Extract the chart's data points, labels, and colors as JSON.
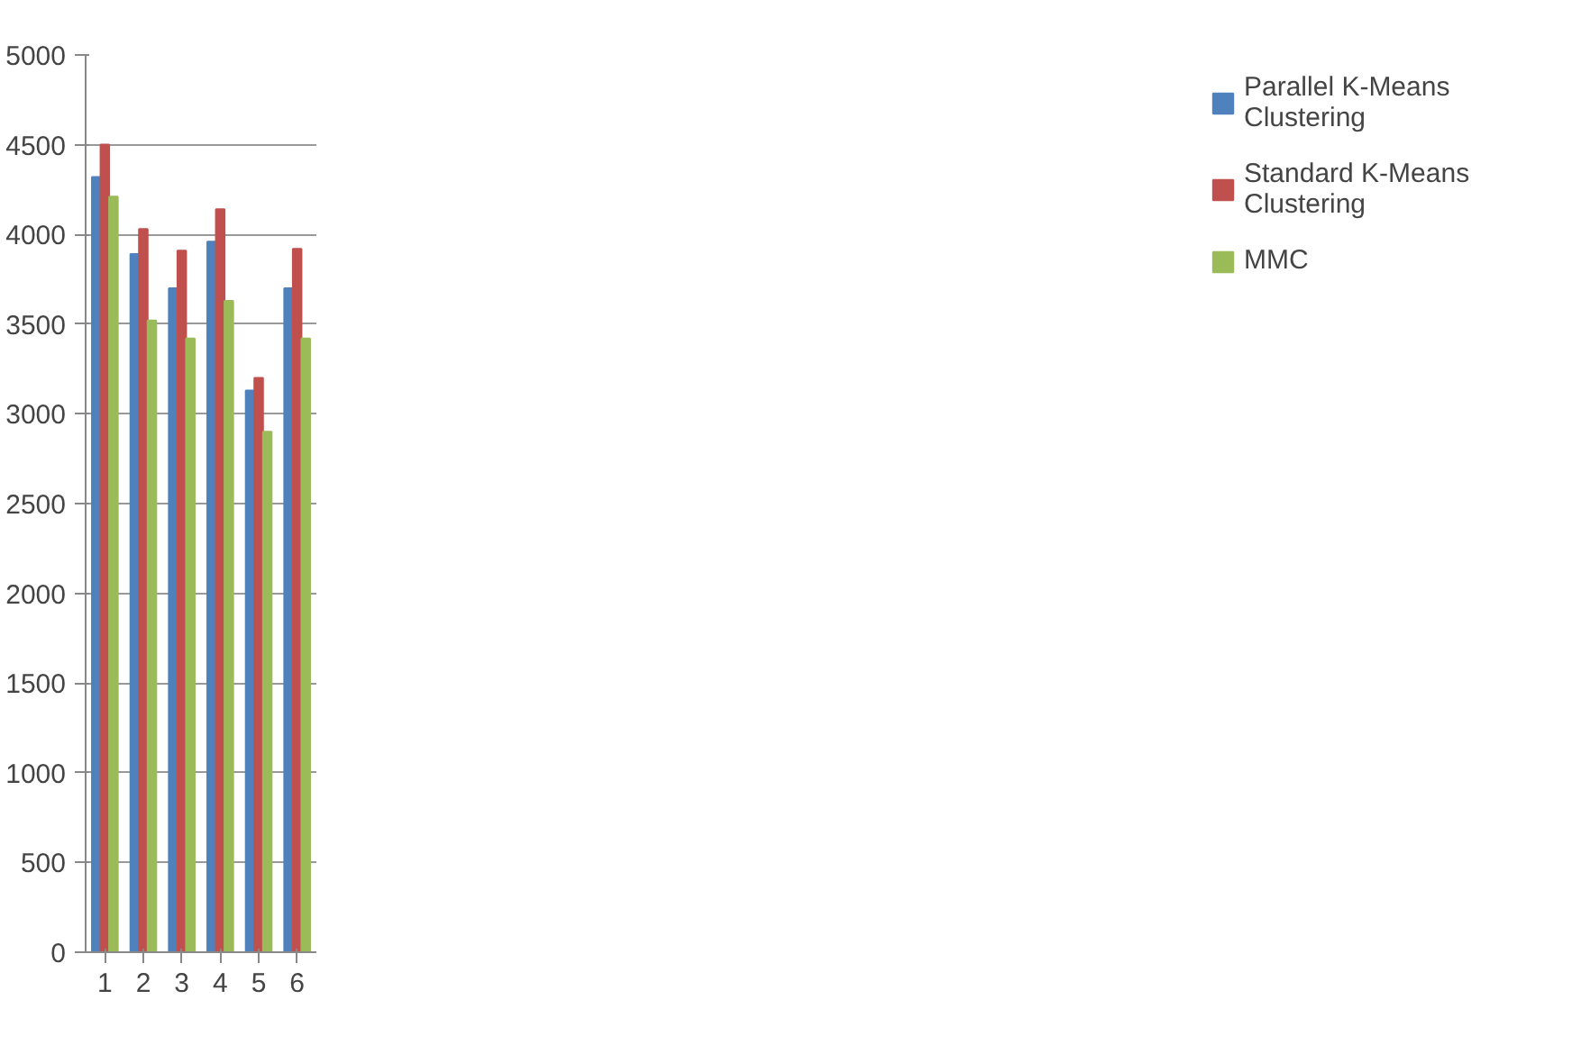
{
  "chart_data": {
    "type": "bar",
    "categories": [
      "1",
      "2",
      "3",
      "4",
      "5",
      "6"
    ],
    "series": [
      {
        "name": "Parallel K-Means Clustering",
        "color": "#4f81bd",
        "values": [
          4320,
          3890,
          3700,
          3960,
          3130,
          3700
        ]
      },
      {
        "name": "Standard K-Means Clustering",
        "color": "#c0504d",
        "values": [
          4500,
          4030,
          3910,
          4140,
          3200,
          3920
        ]
      },
      {
        "name": "MMC",
        "color": "#9bbb59",
        "values": [
          4210,
          3520,
          3420,
          3630,
          2900,
          3420
        ]
      }
    ],
    "ylim": [
      0,
      5000
    ],
    "yticks": [
      0,
      500,
      1000,
      1500,
      2000,
      2500,
      3000,
      3500,
      4000,
      4500,
      5000
    ],
    "grid": "y",
    "legend": "right"
  }
}
